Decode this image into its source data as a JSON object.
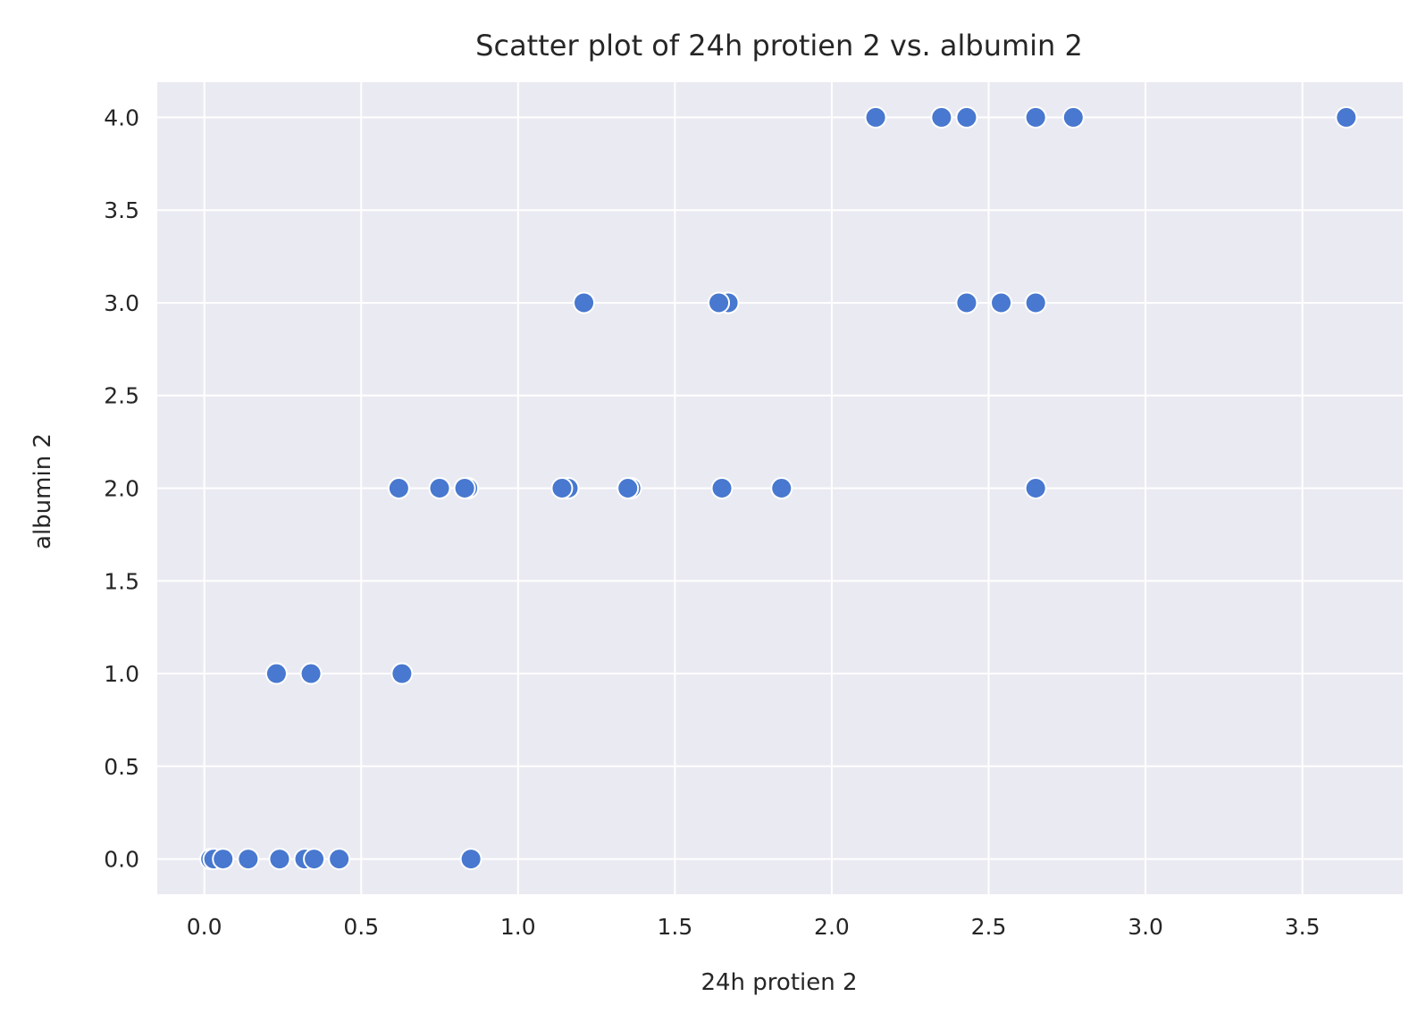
{
  "chart_data": {
    "type": "scatter",
    "title": "Scatter plot of 24h protien 2 vs. albumin 2",
    "xlabel": "24h protien 2",
    "ylabel": "albumin 2",
    "xlim": [
      -0.15,
      3.82
    ],
    "ylim": [
      -0.19,
      4.19
    ],
    "xticks": [
      0.0,
      0.5,
      1.0,
      1.5,
      2.0,
      2.5,
      3.0,
      3.5
    ],
    "xtick_labels": [
      "0.0",
      "0.5",
      "1.0",
      "1.5",
      "2.0",
      "2.5",
      "3.0",
      "3.5"
    ],
    "yticks": [
      0.0,
      0.5,
      1.0,
      1.5,
      2.0,
      2.5,
      3.0,
      3.5,
      4.0
    ],
    "ytick_labels": [
      "0.0",
      "0.5",
      "1.0",
      "1.5",
      "2.0",
      "2.5",
      "3.0",
      "3.5",
      "4.0"
    ],
    "grid": true,
    "colors": {
      "plot_background": "#eaeaf2",
      "grid": "#ffffff",
      "marker": "#4878cf",
      "marker_edge": "#ffffff",
      "text": "#262626"
    },
    "series": [
      {
        "points": [
          {
            "x": 0.02,
            "y": 0
          },
          {
            "x": 0.03,
            "y": 0
          },
          {
            "x": 0.06,
            "y": 0
          },
          {
            "x": 0.14,
            "y": 0
          },
          {
            "x": 0.24,
            "y": 0
          },
          {
            "x": 0.32,
            "y": 0
          },
          {
            "x": 0.35,
            "y": 0
          },
          {
            "x": 0.43,
            "y": 0
          },
          {
            "x": 0.85,
            "y": 0
          },
          {
            "x": 0.23,
            "y": 1
          },
          {
            "x": 0.34,
            "y": 1
          },
          {
            "x": 0.63,
            "y": 1
          },
          {
            "x": 0.62,
            "y": 2
          },
          {
            "x": 0.75,
            "y": 2
          },
          {
            "x": 0.84,
            "y": 2
          },
          {
            "x": 0.83,
            "y": 2
          },
          {
            "x": 1.16,
            "y": 2
          },
          {
            "x": 1.14,
            "y": 2
          },
          {
            "x": 1.36,
            "y": 2
          },
          {
            "x": 1.35,
            "y": 2
          },
          {
            "x": 1.65,
            "y": 2
          },
          {
            "x": 1.84,
            "y": 2
          },
          {
            "x": 2.65,
            "y": 2
          },
          {
            "x": 1.21,
            "y": 3
          },
          {
            "x": 1.67,
            "y": 3
          },
          {
            "x": 1.64,
            "y": 3
          },
          {
            "x": 2.43,
            "y": 3
          },
          {
            "x": 2.54,
            "y": 3
          },
          {
            "x": 2.65,
            "y": 3
          },
          {
            "x": 2.14,
            "y": 4
          },
          {
            "x": 2.35,
            "y": 4
          },
          {
            "x": 2.43,
            "y": 4
          },
          {
            "x": 2.65,
            "y": 4
          },
          {
            "x": 2.77,
            "y": 4
          },
          {
            "x": 3.64,
            "y": 4
          }
        ]
      }
    ]
  }
}
